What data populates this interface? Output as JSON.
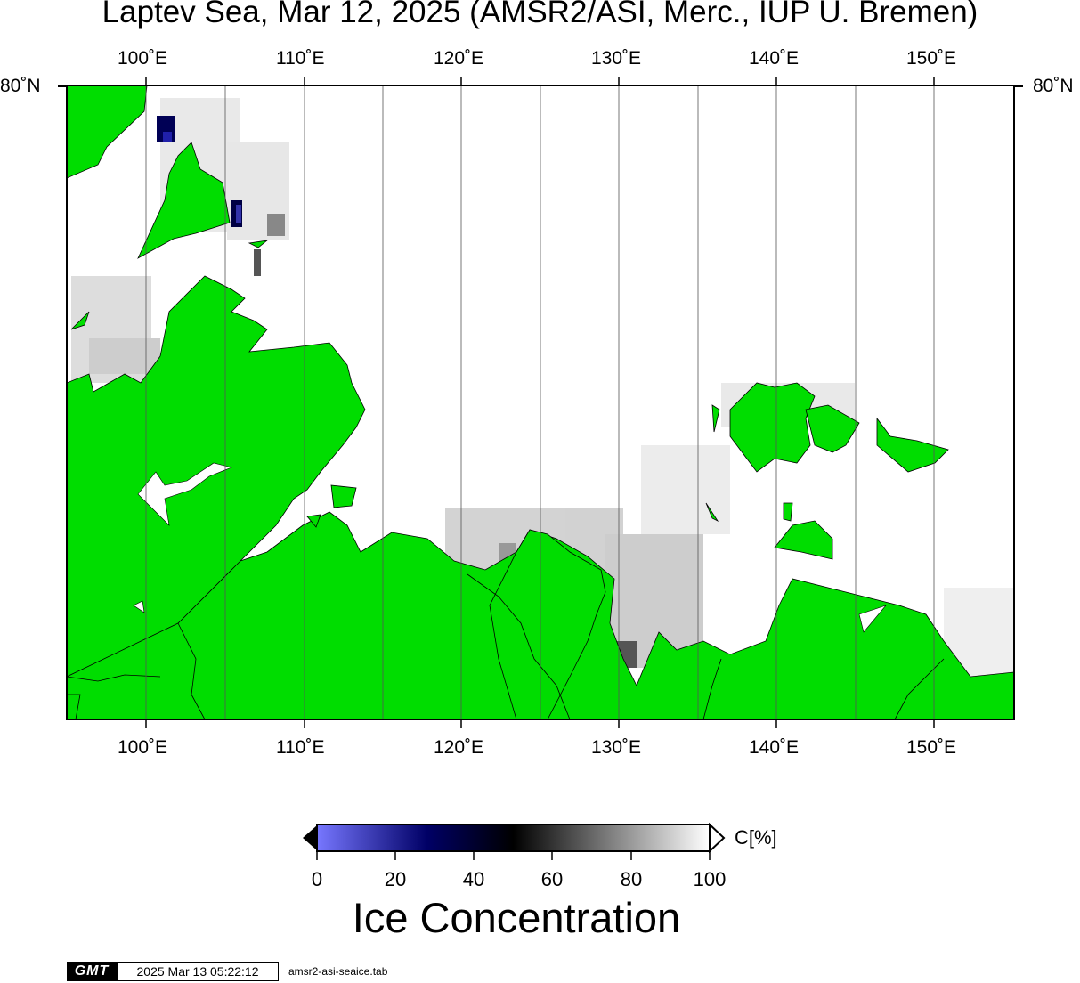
{
  "title": "Laptev Sea, Mar 12, 2025 (AMSR2/ASI, Merc., IUP U. Bremen)",
  "longitude_labels": [
    "100˚E",
    "110˚E",
    "120˚E",
    "130˚E",
    "140˚E",
    "150˚E"
  ],
  "latitude_label_left": "80˚N",
  "latitude_label_right": "80˚N",
  "map": {
    "land_color": "#00dd00",
    "ocean_color": "#ffffff",
    "gridline_color": "#555555"
  },
  "colorbar": {
    "unit_label": "C[%]",
    "ticks": [
      "0",
      "20",
      "40",
      "60",
      "80",
      "100"
    ],
    "colors": [
      "#7777ff",
      "#000066",
      "#000000",
      "#808080",
      "#ffffff"
    ]
  },
  "variable_title": "Ice Concentration",
  "footer": {
    "logo": "GMT",
    "timestamp": "2025 Mar 13 05:22:12",
    "filename": "amsr2-asi-seaice.tab"
  }
}
